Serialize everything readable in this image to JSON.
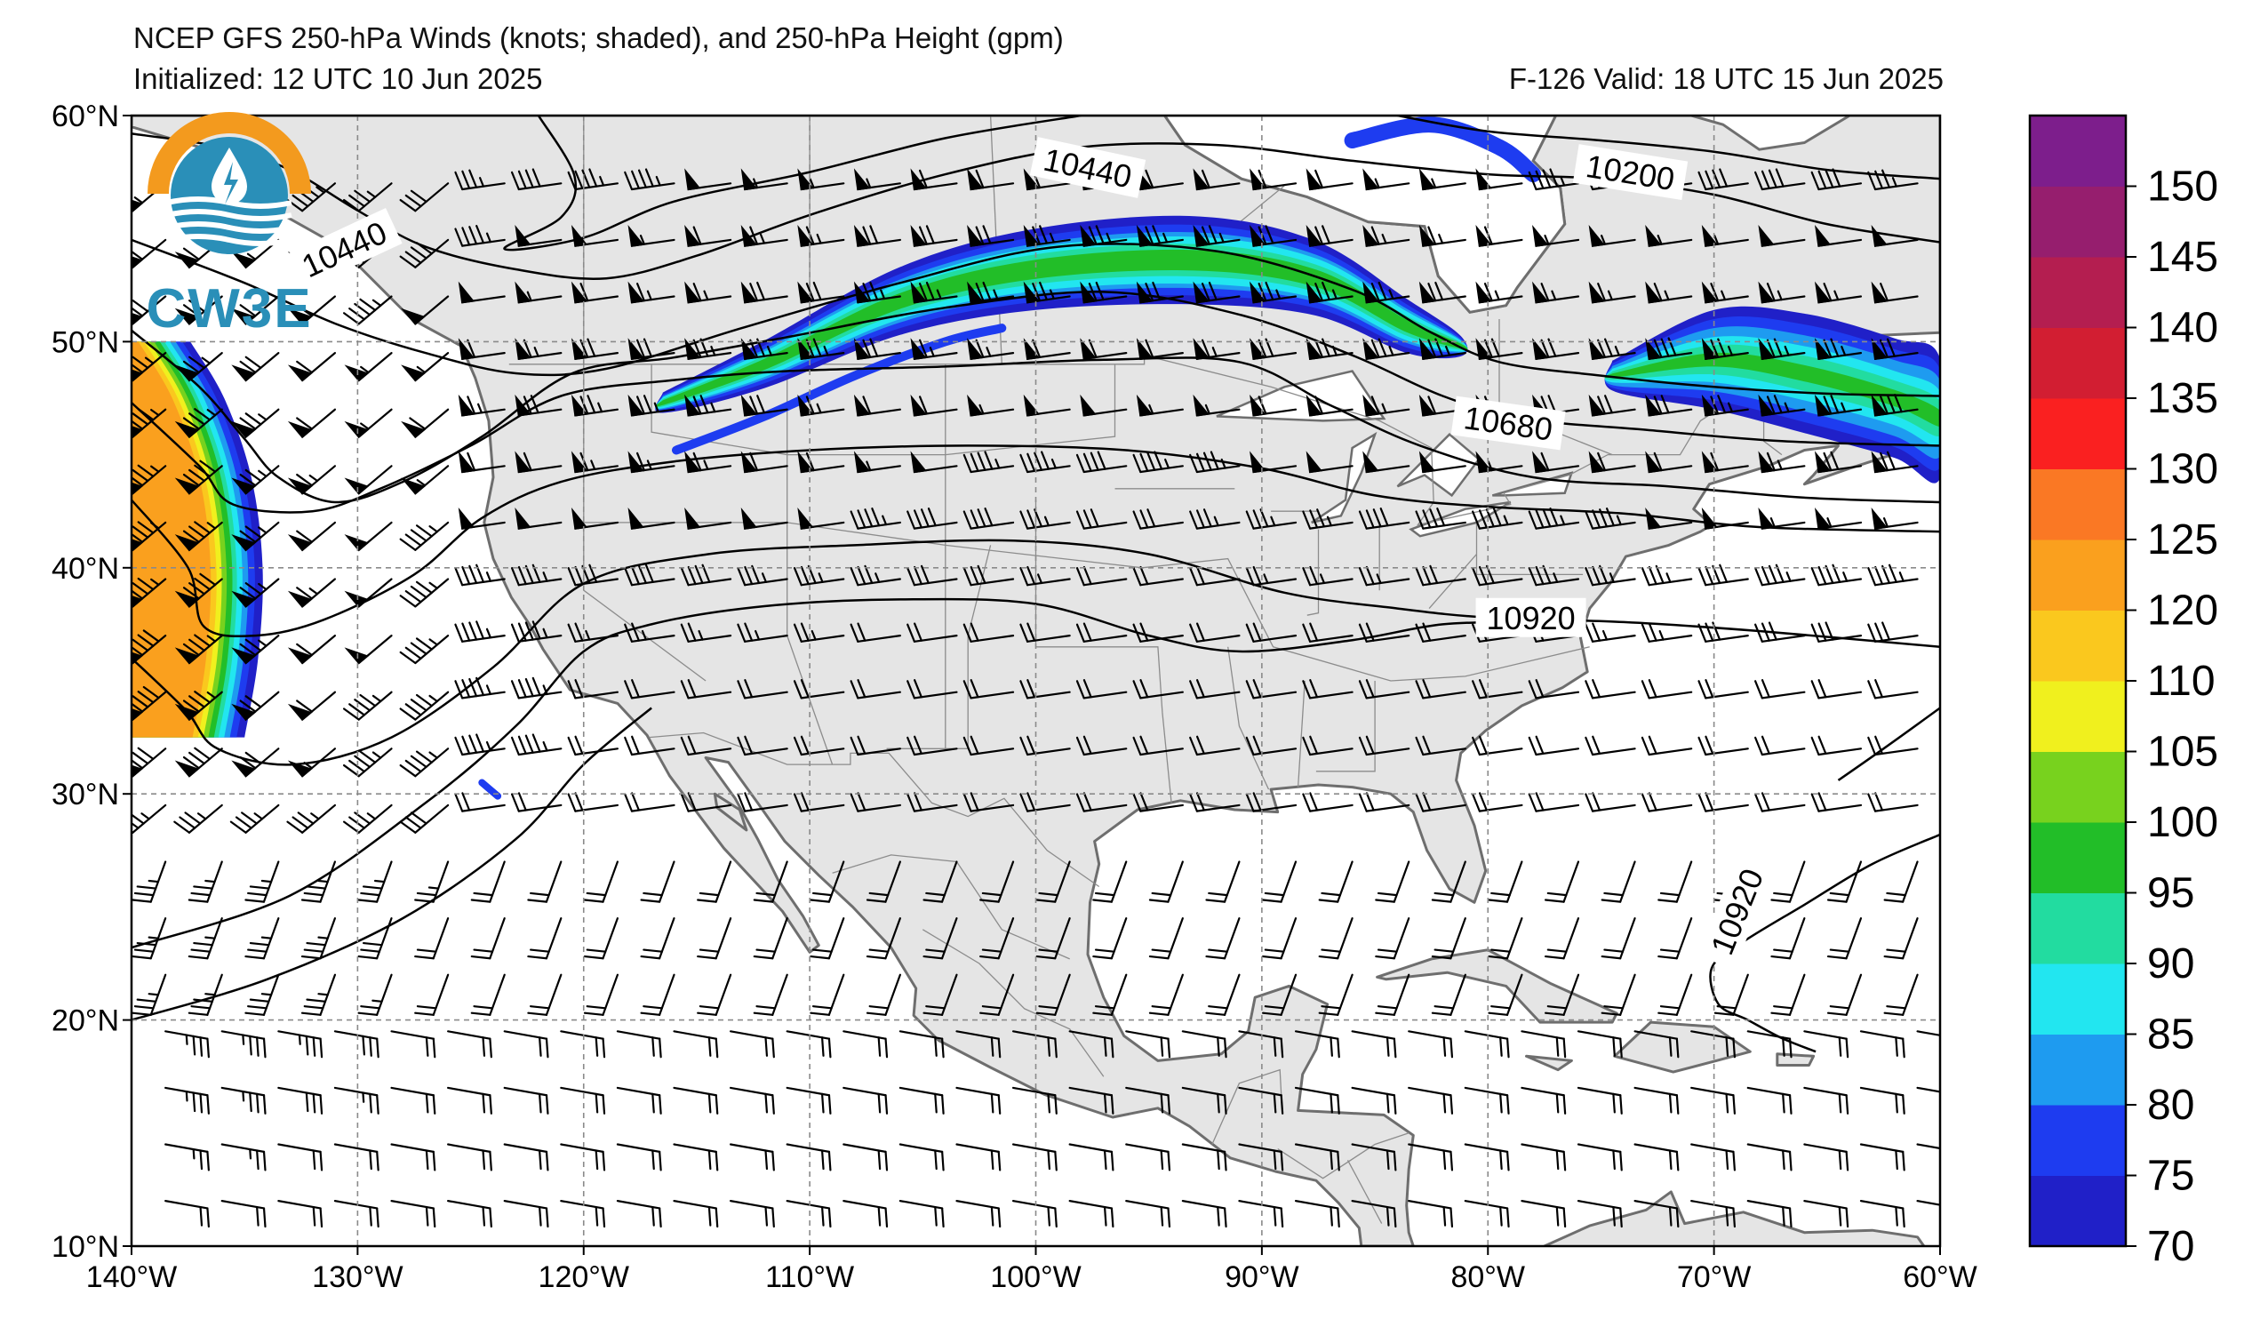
{
  "header": {
    "title": "NCEP GFS 250-hPa Winds (knots; shaded), and 250-hPa Height (gpm)",
    "initialized": "Initialized: 12 UTC 10 Jun 2025",
    "valid": "F-126  Valid: 18 UTC 15 Jun 2025"
  },
  "logo": {
    "text": "CW3E"
  },
  "map": {
    "lon_range": [
      -140,
      -60
    ],
    "lat_range": [
      10,
      60
    ],
    "lon_ticks": [
      {
        "lon": -140,
        "label": "140°W"
      },
      {
        "lon": -130,
        "label": "130°W"
      },
      {
        "lon": -120,
        "label": "120°W"
      },
      {
        "lon": -110,
        "label": "110°W"
      },
      {
        "lon": -100,
        "label": "100°W"
      },
      {
        "lon": -90,
        "label": "90°W"
      },
      {
        "lon": -80,
        "label": "80°W"
      },
      {
        "lon": -70,
        "label": "70°W"
      },
      {
        "lon": -60,
        "label": "60°W"
      }
    ],
    "lat_ticks": [
      {
        "lat": 60,
        "label": "60°N"
      },
      {
        "lat": 50,
        "label": "50°N"
      },
      {
        "lat": 40,
        "label": "40°N"
      },
      {
        "lat": 30,
        "label": "30°N"
      },
      {
        "lat": 20,
        "label": "20°N"
      },
      {
        "lat": 10,
        "label": "10°N"
      }
    ],
    "contour_labels": [
      {
        "text": "10440",
        "lon": -130.6,
        "lat": 54.1,
        "angle": -25
      },
      {
        "text": "10440",
        "lon": -97.7,
        "lat": 57.7,
        "angle": 12
      },
      {
        "text": "10200",
        "lon": -73.7,
        "lat": 57.5,
        "angle": 9
      },
      {
        "text": "10680",
        "lon": -79.1,
        "lat": 46.4,
        "angle": 8
      },
      {
        "text": "10920",
        "lon": -78.1,
        "lat": 37.8,
        "angle": 0
      },
      {
        "text": "10920",
        "lon": -69.0,
        "lat": 24.8,
        "angle": -68
      }
    ],
    "colorbar": {
      "levels": [
        70,
        75,
        80,
        85,
        90,
        95,
        100,
        105,
        110,
        120,
        125,
        130,
        135,
        140,
        145,
        150,
        155
      ],
      "labels": [
        "70",
        "75",
        "80",
        "85",
        "90",
        "95",
        "100",
        "105",
        "110",
        "120",
        "125",
        "130",
        "135",
        "140",
        "145",
        "150"
      ],
      "colors": [
        "#2020c8",
        "#1e3cf0",
        "#1e9bf0",
        "#22e6f0",
        "#22dca0",
        "#22be28",
        "#78d21e",
        "#f0f01e",
        "#fac81e",
        "#faa01e",
        "#fa7824",
        "#fa2020",
        "#d21e32",
        "#b41e50",
        "#961e6e",
        "#7d1e8c"
      ]
    },
    "colors": {
      "land": "#e5e5e5",
      "ocean": "#ffffff",
      "coast": "#6e6e6e",
      "grid": "#8a8a8a",
      "contour": "#000000"
    }
  }
}
